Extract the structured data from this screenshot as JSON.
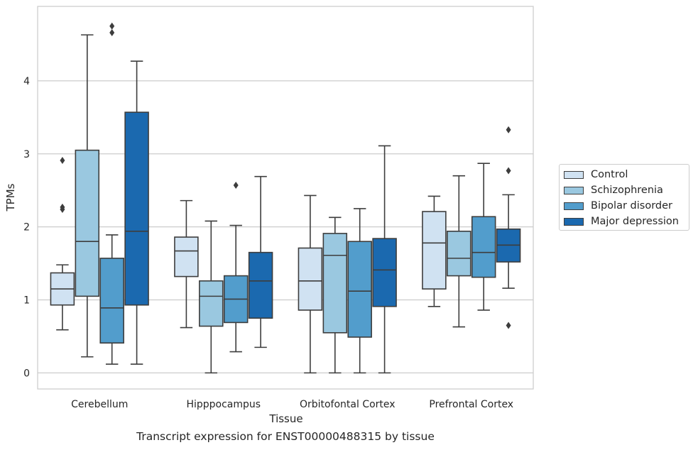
{
  "chart_data": {
    "type": "box",
    "title": "",
    "caption": "Transcript expression for ENST00000488315 by tissue",
    "xlabel": "Tissue",
    "ylabel": "TPMs",
    "ylim": [
      -0.22,
      5.02
    ],
    "yticks": [
      0,
      1,
      2,
      3,
      4
    ],
    "grid": true,
    "legend_position": "right",
    "categories": [
      "Cerebellum",
      "Hipppocampus",
      "Orbitofontal Cortex",
      "Prefrontal Cortex"
    ],
    "series": [
      {
        "name": "Control",
        "color": "#d0e2f2",
        "boxes": [
          {
            "whisker_low": 0.59,
            "q1": 0.93,
            "median": 1.15,
            "q3": 1.37,
            "whisker_high": 1.48,
            "outliers": [
              2.91,
              2.27,
              2.24
            ]
          },
          {
            "whisker_low": 0.62,
            "q1": 1.32,
            "median": 1.67,
            "q3": 1.86,
            "whisker_high": 2.36,
            "outliers": []
          },
          {
            "whisker_low": 0.0,
            "q1": 0.86,
            "median": 1.26,
            "q3": 1.71,
            "whisker_high": 2.43,
            "outliers": []
          },
          {
            "whisker_low": 0.91,
            "q1": 1.15,
            "median": 1.78,
            "q3": 2.21,
            "whisker_high": 2.42,
            "outliers": []
          }
        ]
      },
      {
        "name": "Schizophrenia",
        "color": "#9ac8e0",
        "boxes": [
          {
            "whisker_low": 0.22,
            "q1": 1.05,
            "median": 1.8,
            "q3": 3.05,
            "whisker_high": 4.63,
            "outliers": []
          },
          {
            "whisker_low": 0.0,
            "q1": 0.64,
            "median": 1.05,
            "q3": 1.26,
            "whisker_high": 2.08,
            "outliers": []
          },
          {
            "whisker_low": 0.0,
            "q1": 0.55,
            "median": 1.61,
            "q3": 1.91,
            "whisker_high": 2.13,
            "outliers": []
          },
          {
            "whisker_low": 0.63,
            "q1": 1.33,
            "median": 1.57,
            "q3": 1.94,
            "whisker_high": 2.7,
            "outliers": []
          }
        ]
      },
      {
        "name": "Bipolar disorder",
        "color": "#529dcc",
        "boxes": [
          {
            "whisker_low": 0.12,
            "q1": 0.41,
            "median": 0.89,
            "q3": 1.57,
            "whisker_high": 1.89,
            "outliers": [
              4.66,
              4.75
            ]
          },
          {
            "whisker_low": 0.29,
            "q1": 0.69,
            "median": 1.01,
            "q3": 1.33,
            "whisker_high": 2.02,
            "outliers": [
              2.57
            ]
          },
          {
            "whisker_low": 0.0,
            "q1": 0.49,
            "median": 1.12,
            "q3": 1.8,
            "whisker_high": 2.25,
            "outliers": []
          },
          {
            "whisker_low": 0.86,
            "q1": 1.31,
            "median": 1.65,
            "q3": 2.14,
            "whisker_high": 2.87,
            "outliers": []
          }
        ]
      },
      {
        "name": "Major depression",
        "color": "#1b69af",
        "boxes": [
          {
            "whisker_low": 0.12,
            "q1": 0.93,
            "median": 1.94,
            "q3": 3.57,
            "whisker_high": 4.27,
            "outliers": []
          },
          {
            "whisker_low": 0.35,
            "q1": 0.75,
            "median": 1.26,
            "q3": 1.65,
            "whisker_high": 2.69,
            "outliers": []
          },
          {
            "whisker_low": 0.0,
            "q1": 0.91,
            "median": 1.41,
            "q3": 1.84,
            "whisker_high": 3.11,
            "outliers": []
          },
          {
            "whisker_low": 1.16,
            "q1": 1.52,
            "median": 1.75,
            "q3": 1.97,
            "whisker_high": 2.44,
            "outliers": [
              3.33,
              2.77,
              0.65
            ]
          }
        ]
      }
    ]
  }
}
